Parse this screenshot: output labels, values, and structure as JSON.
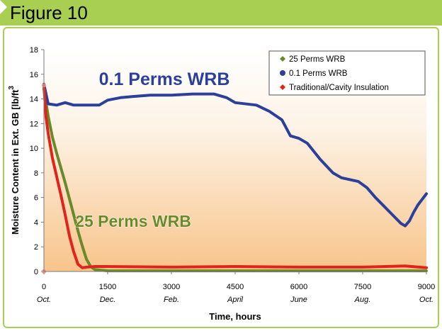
{
  "figure_label": "Figure 10",
  "colors": {
    "accent": "#a8cf52",
    "green_series": "#6a8a2a",
    "blue_series": "#2b3f9b",
    "red_series": "#e0241c"
  },
  "chart_data": {
    "type": "line",
    "xlabel": "Time, hours",
    "ylabel": "Moisture Content in Ext. GB [lb/ft",
    "ylabel_superscript": "3",
    "ylim": [
      0,
      18
    ],
    "xlim": [
      0,
      9000
    ],
    "yticks": [
      0,
      2,
      4,
      6,
      8,
      10,
      12,
      14,
      16,
      18
    ],
    "xticks": [
      0,
      1500,
      3000,
      4500,
      6000,
      7500,
      9000
    ],
    "month_labels": [
      {
        "x": 0,
        "label": "Oct."
      },
      {
        "x": 1500,
        "label": "Dec."
      },
      {
        "x": 3000,
        "label": "Feb."
      },
      {
        "x": 4500,
        "label": "April"
      },
      {
        "x": 6000,
        "label": "June"
      },
      {
        "x": 7500,
        "label": "Aug."
      },
      {
        "x": 9000,
        "label": "Oct."
      }
    ],
    "grid": false,
    "legend_position": "top-right",
    "annotations": [
      {
        "text": "0.1 Perms WRB",
        "series": "0.1 Perms WRB"
      },
      {
        "text": "25 Perms WRB",
        "series": "25 Perms WRB"
      }
    ],
    "series": [
      {
        "name": "25 Perms WRB",
        "color": "#6a8a2a",
        "x": [
          0,
          100,
          200,
          300,
          400,
          500,
          600,
          700,
          800,
          900,
          1000,
          1100,
          1200,
          1500,
          3000,
          4500,
          6000,
          7500,
          9000
        ],
        "y": [
          14.8,
          12.6,
          10.9,
          9.6,
          8.4,
          7.2,
          5.9,
          4.6,
          3.3,
          2.1,
          1.0,
          0.4,
          0.15,
          0.05,
          0.05,
          0.05,
          0.05,
          0.05,
          0.05
        ]
      },
      {
        "name": "0.1 Perms WRB",
        "color": "#2b3f9b",
        "x": [
          0,
          100,
          300,
          500,
          700,
          1000,
          1300,
          1500,
          1800,
          2100,
          2500,
          3000,
          3500,
          4000,
          4300,
          4500,
          5000,
          5300,
          5600,
          5800,
          6000,
          6200,
          6500,
          6800,
          7000,
          7400,
          7600,
          7800,
          8000,
          8200,
          8400,
          8500,
          8600,
          8700,
          8800,
          9000
        ],
        "y": [
          15.2,
          13.6,
          13.5,
          13.7,
          13.5,
          13.5,
          13.5,
          13.9,
          14.1,
          14.2,
          14.3,
          14.3,
          14.4,
          14.4,
          14.1,
          13.7,
          13.5,
          13.0,
          12.3,
          11.0,
          10.8,
          10.4,
          9.1,
          8.0,
          7.6,
          7.3,
          6.8,
          6.0,
          5.3,
          4.6,
          3.9,
          3.7,
          4.1,
          4.8,
          5.4,
          6.3
        ]
      },
      {
        "name": "Traditional/Cavity Insulation",
        "color": "#e0241c",
        "x": [
          0,
          50,
          100,
          200,
          300,
          400,
          500,
          600,
          700,
          800,
          900,
          1000,
          1200,
          1500,
          3000,
          4500,
          6000,
          7500,
          8500,
          9000
        ],
        "y": [
          15.1,
          12.5,
          11.2,
          9.2,
          7.7,
          6.2,
          4.6,
          2.9,
          1.6,
          0.6,
          0.3,
          0.35,
          0.4,
          0.4,
          0.35,
          0.4,
          0.35,
          0.35,
          0.45,
          0.3
        ]
      }
    ]
  }
}
